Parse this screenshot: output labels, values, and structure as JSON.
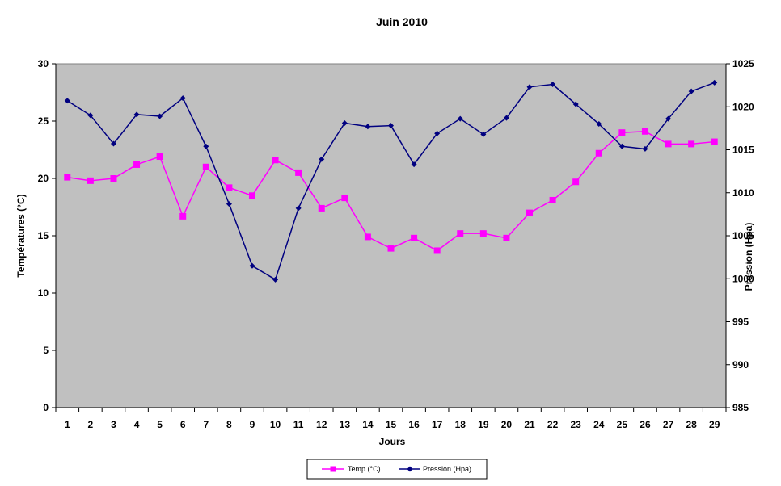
{
  "chart_data": {
    "type": "line",
    "title": "Juin 2010",
    "xlabel": "Jours",
    "ylabel_left": "Températures (°C)",
    "ylabel_right": "Pression (Hpa)",
    "categories": [
      "1",
      "2",
      "3",
      "4",
      "5",
      "6",
      "7",
      "8",
      "9",
      "10",
      "11",
      "12",
      "13",
      "14",
      "15",
      "16",
      "17",
      "18",
      "19",
      "20",
      "21",
      "22",
      "23",
      "24",
      "25",
      "26",
      "27",
      "28",
      "29"
    ],
    "ylim_left": [
      0,
      30
    ],
    "yticks_left": [
      "0",
      "5",
      "10",
      "15",
      "20",
      "25",
      "30"
    ],
    "ylim_right": [
      985,
      1025
    ],
    "yticks_right": [
      "985",
      "990",
      "995",
      "1000",
      "1005",
      "1010",
      "1015",
      "1020",
      "1025"
    ],
    "grid": false,
    "legend_position": "bottom",
    "series": [
      {
        "name": "Temp (°C)",
        "axis": "left",
        "color": "#ff00ff",
        "marker": "square",
        "values": [
          20.1,
          19.8,
          20.0,
          21.2,
          21.9,
          16.7,
          21.0,
          19.2,
          18.5,
          21.6,
          20.5,
          17.4,
          18.3,
          14.9,
          13.9,
          14.8,
          13.7,
          15.2,
          15.2,
          14.8,
          17.0,
          18.1,
          19.7,
          22.2,
          24.0,
          24.1,
          23.0,
          23.0,
          23.2
        ]
      },
      {
        "name": "Pression (Hpa)",
        "axis": "right",
        "color": "#000080",
        "marker": "diamond",
        "values": [
          1020.7,
          1019.0,
          1015.7,
          1019.1,
          1018.9,
          1021.0,
          1015.4,
          1008.7,
          1001.5,
          999.9,
          1008.2,
          1013.9,
          1018.1,
          1017.7,
          1017.8,
          1013.3,
          1016.9,
          1018.6,
          1016.8,
          1018.7,
          1022.3,
          1022.6,
          1020.3,
          1018.0,
          1015.4,
          1015.1,
          1018.6,
          1021.8,
          1022.8
        ]
      }
    ],
    "plot_background": "#c0c0c0"
  }
}
